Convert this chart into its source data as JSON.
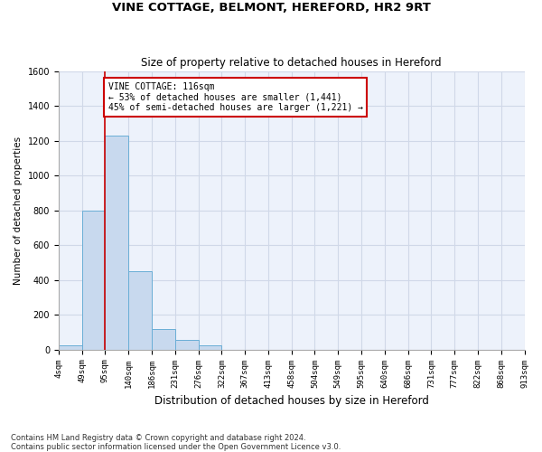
{
  "title1": "VINE COTTAGE, BELMONT, HEREFORD, HR2 9RT",
  "title2": "Size of property relative to detached houses in Hereford",
  "xlabel": "Distribution of detached houses by size in Hereford",
  "ylabel": "Number of detached properties",
  "footnote": "Contains HM Land Registry data © Crown copyright and database right 2024.\nContains public sector information licensed under the Open Government Licence v3.0.",
  "bin_labels": [
    "4sqm",
    "49sqm",
    "95sqm",
    "140sqm",
    "186sqm",
    "231sqm",
    "276sqm",
    "322sqm",
    "367sqm",
    "413sqm",
    "458sqm",
    "504sqm",
    "549sqm",
    "595sqm",
    "640sqm",
    "686sqm",
    "731sqm",
    "777sqm",
    "822sqm",
    "868sqm",
    "913sqm"
  ],
  "bar_values": [
    25,
    800,
    1230,
    450,
    120,
    55,
    25,
    0,
    0,
    0,
    0,
    0,
    0,
    0,
    0,
    0,
    0,
    0,
    0,
    0
  ],
  "bar_color": "#c8d9ee",
  "bar_edge_color": "#6aaed6",
  "property_line_x": 2.0,
  "annotation_text": "VINE COTTAGE: 116sqm\n← 53% of detached houses are smaller (1,441)\n45% of semi-detached houses are larger (1,221) →",
  "annotation_box_color": "#cc0000",
  "ylim": [
    0,
    1600
  ],
  "yticks": [
    0,
    200,
    400,
    600,
    800,
    1000,
    1200,
    1400,
    1600
  ],
  "grid_color": "#d0d8e8",
  "background_color": "#edf2fb"
}
